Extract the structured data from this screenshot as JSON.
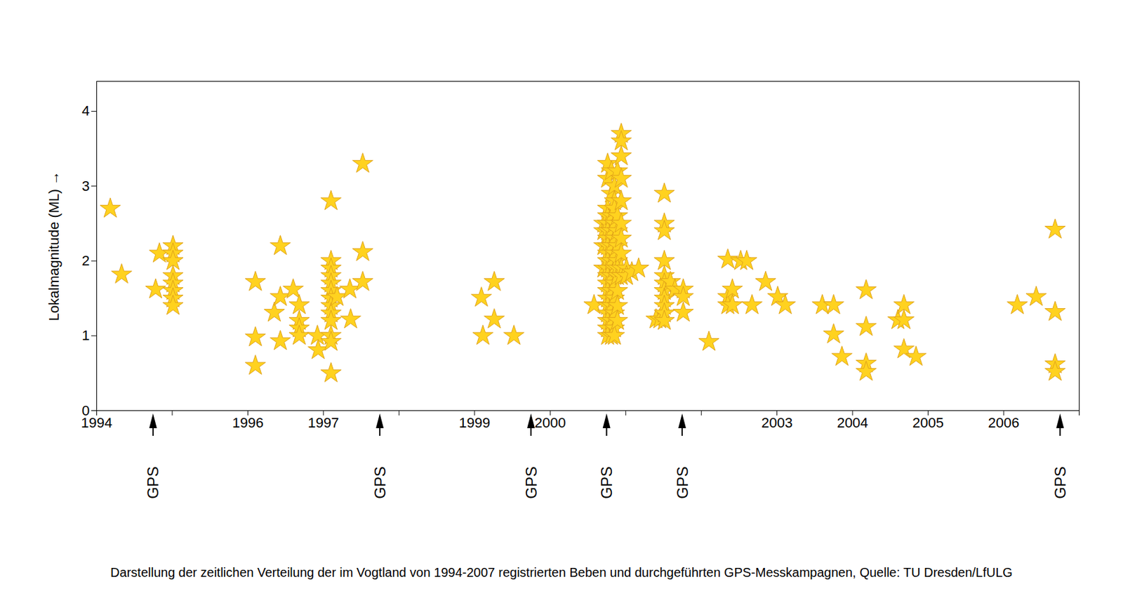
{
  "chart_data": {
    "type": "scatter",
    "caption": "Darstellung der zeitlichen Verteilung der im Vogtland von 1994-2007 registrierten Beben und durchgeführten GPS-Messkampagnen, Quelle: TU Dresden/LfULG",
    "y_label": "Lokalmagnitude (ML)",
    "color": "#ffd21f",
    "marker": "star",
    "xlim": [
      1994,
      2007
    ],
    "xticks": [
      1994,
      {
        "value": 1995,
        "label": null
      },
      1996,
      1997,
      {
        "value": 1998,
        "label": null
      },
      1999,
      2000,
      {
        "value": 2001,
        "label": null
      },
      {
        "value": 2002,
        "label": null
      },
      2003,
      2004,
      2005,
      2006,
      {
        "value": 2007,
        "label": null
      }
    ],
    "ylim": [
      0,
      4.4
    ],
    "yticks": [
      0,
      1,
      2,
      3,
      4
    ],
    "grid": false,
    "x": [
      1994.18,
      1994.33,
      1994.78,
      1994.83,
      1995.01,
      1995.01,
      1995.01,
      1995.01,
      1995.01,
      1995.01,
      1995.01,
      1995.01,
      1996.1,
      1996.1,
      1996.1,
      1996.35,
      1996.43,
      1996.43,
      1996.43,
      1996.6,
      1996.68,
      1996.68,
      1996.68,
      1996.68,
      1996.92,
      1996.93,
      1997.1,
      1997.1,
      1997.1,
      1997.1,
      1997.1,
      1997.1,
      1997.1,
      1997.1,
      1997.1,
      1997.1,
      1997.1,
      1997.1,
      1997.1,
      1997.18,
      1997.35,
      1997.36,
      1997.52,
      1997.52,
      1997.52,
      1999.09,
      1999.11,
      1999.26,
      1999.26,
      1999.52,
      2000.58,
      2000.71,
      2000.71,
      2000.71,
      2000.71,
      2000.76,
      2000.76,
      2000.76,
      2000.76,
      2000.76,
      2000.76,
      2000.76,
      2000.76,
      2000.76,
      2000.76,
      2000.76,
      2000.76,
      2000.76,
      2000.76,
      2000.76,
      2000.76,
      2000.76,
      2000.76,
      2000.76,
      2000.76,
      2000.81,
      2000.81,
      2000.81,
      2000.81,
      2000.81,
      2000.81,
      2000.81,
      2000.81,
      2000.81,
      2000.81,
      2000.81,
      2000.85,
      2000.85,
      2000.85,
      2000.85,
      2000.85,
      2000.85,
      2000.85,
      2000.85,
      2000.85,
      2000.85,
      2000.85,
      2000.85,
      2000.89,
      2000.89,
      2000.89,
      2000.89,
      2000.89,
      2000.89,
      2000.89,
      2000.89,
      2000.89,
      2000.89,
      2000.94,
      2000.94,
      2000.94,
      2000.94,
      2000.94,
      2000.94,
      2000.94,
      2000.94,
      2000.94,
      2000.94,
      2001.01,
      2001.01,
      2001.08,
      2001.17,
      2001.4,
      2001.45,
      2001.51,
      2001.51,
      2001.51,
      2001.51,
      2001.51,
      2001.51,
      2001.51,
      2001.51,
      2001.51,
      2001.51,
      2001.51,
      2001.59,
      2001.65,
      2001.76,
      2001.76,
      2001.76,
      2002.1,
      2002.35,
      2002.35,
      2002.35,
      2002.41,
      2002.41,
      2002.52,
      2002.6,
      2002.67,
      2002.85,
      2003.01,
      2003.11,
      2003.6,
      2003.75,
      2003.75,
      2003.86,
      2004.18,
      2004.18,
      2004.18,
      2004.18,
      2004.6,
      2004.68,
      2004.68,
      2004.68,
      2004.84,
      2006.18,
      2006.43,
      2006.68,
      2006.68,
      2006.68,
      2006.68
    ],
    "values": [
      2.7,
      1.82,
      1.62,
      2.1,
      2.2,
      2.1,
      2.0,
      1.8,
      1.7,
      1.6,
      1.5,
      1.4,
      1.72,
      0.98,
      0.6,
      1.31,
      2.2,
      1.52,
      0.93,
      1.62,
      1.41,
      1.2,
      1.1,
      1.0,
      1.0,
      0.81,
      2.8,
      2.0,
      1.9,
      1.8,
      1.7,
      1.6,
      1.5,
      1.4,
      1.3,
      1.2,
      1.0,
      0.92,
      0.5,
      1.52,
      1.62,
      1.22,
      3.3,
      2.12,
      1.72,
      1.51,
      1.0,
      1.72,
      1.22,
      1.0,
      1.41,
      2.5,
      2.4,
      2.2,
      1.9,
      3.3,
      3.1,
      2.7,
      2.6,
      2.5,
      2.4,
      2.3,
      2.2,
      2.1,
      2.0,
      1.9,
      1.8,
      1.7,
      1.6,
      1.5,
      1.4,
      1.3,
      1.2,
      1.1,
      1.0,
      3.2,
      2.9,
      2.6,
      2.4,
      2.2,
      2.0,
      1.8,
      1.6,
      1.4,
      1.2,
      1.0,
      3.0,
      2.8,
      2.7,
      2.5,
      2.3,
      2.1,
      1.9,
      1.7,
      1.5,
      1.3,
      1.1,
      1.0,
      3.2,
      2.6,
      2.4,
      2.2,
      2.0,
      1.9,
      1.8,
      1.6,
      1.4,
      1.2,
      3.7,
      3.6,
      3.4,
      3.1,
      2.8,
      2.5,
      2.3,
      2.1,
      1.9,
      1.8,
      1.9,
      1.8,
      1.85,
      1.9,
      1.22,
      1.22,
      2.9,
      2.5,
      2.4,
      2.0,
      1.8,
      1.7,
      1.6,
      1.5,
      1.4,
      1.3,
      1.2,
      1.72,
      1.62,
      1.62,
      1.52,
      1.31,
      0.92,
      2.02,
      1.52,
      1.41,
      1.62,
      1.41,
      2.0,
      2.0,
      1.41,
      1.72,
      1.52,
      1.41,
      1.41,
      1.41,
      1.02,
      0.72,
      1.61,
      1.12,
      0.63,
      0.52,
      1.21,
      1.21,
      1.41,
      0.82,
      0.72,
      1.41,
      1.52,
      2.42,
      1.32,
      0.62,
      0.52
    ],
    "gps_campaigns": {
      "label": "GPS",
      "x": [
        1994.75,
        1997.75,
        1999.75,
        2000.75,
        2001.75,
        2006.75
      ]
    }
  }
}
